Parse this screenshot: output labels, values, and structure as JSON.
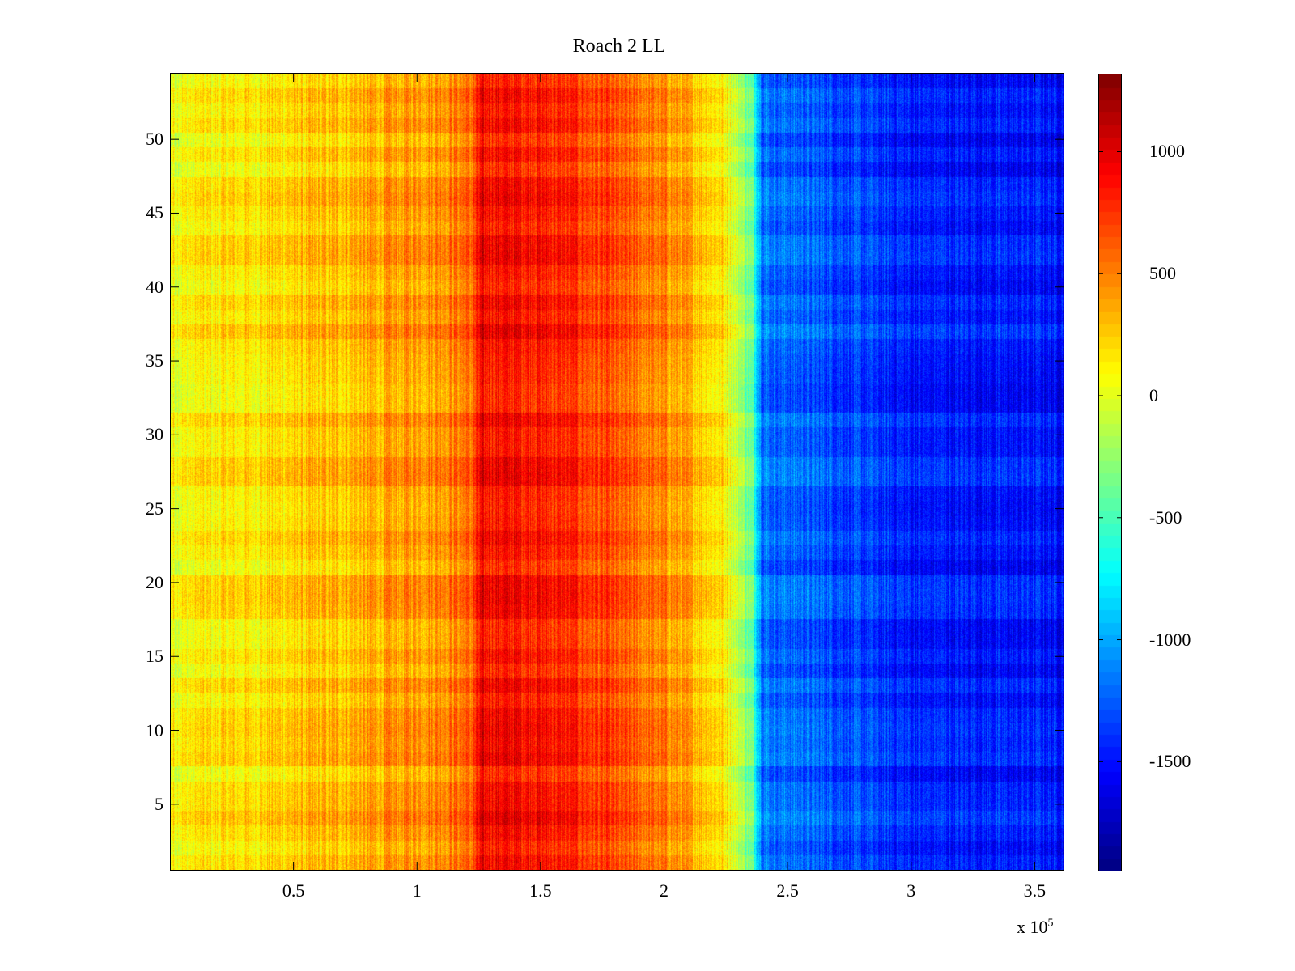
{
  "chart_data": {
    "type": "heatmap",
    "title": "Roach 2 LL",
    "xlabel": "",
    "ylabel": "",
    "x_range": [
      0,
      362000
    ],
    "y_range": [
      1,
      54
    ],
    "x_ticks": [
      50000,
      100000,
      150000,
      200000,
      250000,
      300000,
      350000
    ],
    "x_tick_labels": [
      "0.5",
      "1",
      "1.5",
      "2",
      "2.5",
      "3",
      "3.5"
    ],
    "x_multiplier_text": "x 10",
    "x_multiplier_exponent": "5",
    "y_ticks": [
      5,
      10,
      15,
      20,
      25,
      30,
      35,
      40,
      45,
      50
    ],
    "y_tick_labels": [
      "5",
      "10",
      "15",
      "20",
      "25",
      "30",
      "35",
      "40",
      "45",
      "50"
    ],
    "colormap": "jet",
    "color_range": [
      -1950,
      1320
    ],
    "colorbar_ticks": [
      1000,
      500,
      0,
      -500,
      -1000,
      -1500
    ],
    "colorbar_tick_labels": [
      "1000",
      "500",
      "0",
      "-500",
      "-1000",
      "-1500"
    ],
    "value_profile_along_x": [
      {
        "x": 0,
        "value": 80
      },
      {
        "x": 50000,
        "value": 220
      },
      {
        "x": 100000,
        "value": 420
      },
      {
        "x": 122000,
        "value": 550
      },
      {
        "x": 126000,
        "value": 900
      },
      {
        "x": 150000,
        "value": 850
      },
      {
        "x": 200000,
        "value": 470
      },
      {
        "x": 225000,
        "value": 150
      },
      {
        "x": 236000,
        "value": -450
      },
      {
        "x": 240000,
        "value": -1150
      },
      {
        "x": 300000,
        "value": -1450
      },
      {
        "x": 362000,
        "value": -1500
      }
    ],
    "grid": false,
    "colorbar_position": "right"
  }
}
